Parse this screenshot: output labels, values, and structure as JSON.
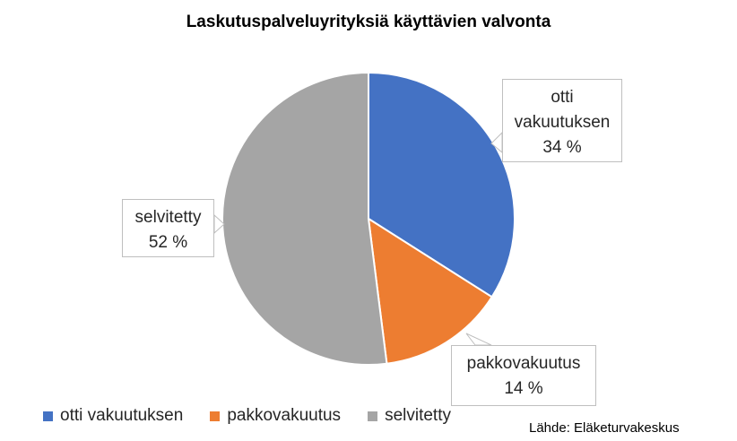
{
  "chart_data": {
    "type": "pie",
    "title": "Laskutuspalveluyrityksiä käyttävien valvonta",
    "categories": [
      "otti vakuutuksen",
      "pakkovakuutus",
      "selvitetty"
    ],
    "values": [
      34,
      14,
      52
    ],
    "value_labels": [
      "34 %",
      "14 %",
      "52 %"
    ],
    "colors": [
      "#4472c4",
      "#ed7d31",
      "#a5a5a5"
    ],
    "legend": "bottom",
    "source": "Lähde: Eläketurvakeskus"
  }
}
